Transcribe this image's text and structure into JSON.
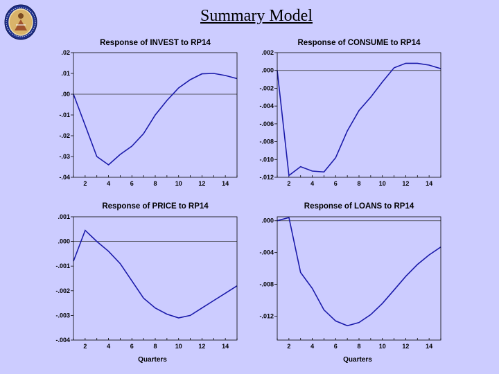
{
  "slide": {
    "title": "Summary Model"
  },
  "chart_data": [
    {
      "type": "line",
      "title": "Response of INVEST to RP14",
      "xlabel": "",
      "x": [
        1,
        2,
        3,
        4,
        5,
        6,
        7,
        8,
        9,
        10,
        11,
        12,
        13,
        14,
        15
      ],
      "values": [
        0.0,
        -0.015,
        -0.03,
        -0.034,
        -0.029,
        -0.025,
        -0.019,
        -0.01,
        -0.003,
        0.003,
        0.007,
        0.0098,
        0.01,
        0.009,
        0.0075
      ],
      "ylim": [
        -0.04,
        0.02
      ],
      "yticks": [
        0.02,
        0.01,
        0.0,
        -0.01,
        -0.02,
        -0.03,
        -0.04
      ],
      "ytick_labels": [
        ".02",
        ".01",
        ".00",
        "-.01",
        "-.02",
        "-.03",
        "-.04"
      ],
      "xticks": [
        2,
        4,
        6,
        8,
        10,
        12,
        14
      ],
      "xtick_labels": [
        "2",
        "4",
        "6",
        "8",
        "10",
        "12",
        "14"
      ]
    },
    {
      "type": "line",
      "title": "Response of CONSUME to RP14",
      "xlabel": "",
      "x": [
        1,
        2,
        3,
        4,
        5,
        6,
        7,
        8,
        9,
        10,
        11,
        12,
        13,
        14,
        15
      ],
      "values": [
        0.0,
        -0.0118,
        -0.0108,
        -0.0113,
        -0.0114,
        -0.0098,
        -0.0068,
        -0.0045,
        -0.003,
        -0.0013,
        0.0003,
        0.0008,
        0.0008,
        0.0006,
        0.0002
      ],
      "ylim": [
        -0.012,
        0.002
      ],
      "yticks": [
        0.002,
        0.0,
        -0.002,
        -0.004,
        -0.006,
        -0.008,
        -0.01,
        -0.012
      ],
      "ytick_labels": [
        ".002",
        ".000",
        "-.002",
        "-.004",
        "-.006",
        "-.008",
        "-.010",
        "-.012"
      ],
      "xticks": [
        2,
        4,
        6,
        8,
        10,
        12,
        14
      ],
      "xtick_labels": [
        "2",
        "4",
        "6",
        "8",
        "10",
        "12",
        "14"
      ]
    },
    {
      "type": "line",
      "title": "Response of PRICE to RP14",
      "xlabel": "Quarters",
      "x": [
        1,
        2,
        3,
        4,
        5,
        6,
        7,
        8,
        9,
        10,
        11,
        12,
        13,
        14,
        15
      ],
      "values": [
        -0.0008,
        0.00045,
        0.0,
        -0.0004,
        -0.0009,
        -0.0016,
        -0.0023,
        -0.0027,
        -0.00295,
        -0.0031,
        -0.003,
        -0.0027,
        -0.0024,
        -0.0021,
        -0.0018
      ],
      "ylim": [
        -0.004,
        0.001
      ],
      "yticks": [
        0.001,
        0.0,
        -0.001,
        -0.002,
        -0.003,
        -0.004
      ],
      "ytick_labels": [
        ".001",
        ".000",
        "-.001",
        "-.002",
        "-.003",
        "-.004"
      ],
      "xticks": [
        2,
        4,
        6,
        8,
        10,
        12,
        14
      ],
      "xtick_labels": [
        "2",
        "4",
        "6",
        "8",
        "10",
        "12",
        "14"
      ]
    },
    {
      "type": "line",
      "title": "Response of LOANS to RP14",
      "xlabel": "Quarters",
      "x": [
        1,
        2,
        3,
        4,
        5,
        6,
        7,
        8,
        9,
        10,
        11,
        12,
        13,
        14,
        15
      ],
      "values": [
        0.0,
        0.0004,
        -0.0065,
        -0.0085,
        -0.0112,
        -0.0126,
        -0.0132,
        -0.0128,
        -0.0118,
        -0.0104,
        -0.0087,
        -0.007,
        -0.0055,
        -0.0043,
        -0.0033
      ],
      "ylim": [
        -0.015,
        0.0005
      ],
      "yticks": [
        0.0,
        -0.004,
        -0.008,
        -0.012
      ],
      "ytick_labels": [
        ".000",
        "-.004",
        "-.008",
        "-.012"
      ],
      "xticks": [
        2,
        4,
        6,
        8,
        10,
        12,
        14
      ],
      "xtick_labels": [
        "2",
        "4",
        "6",
        "8",
        "10",
        "12",
        "14"
      ]
    }
  ]
}
